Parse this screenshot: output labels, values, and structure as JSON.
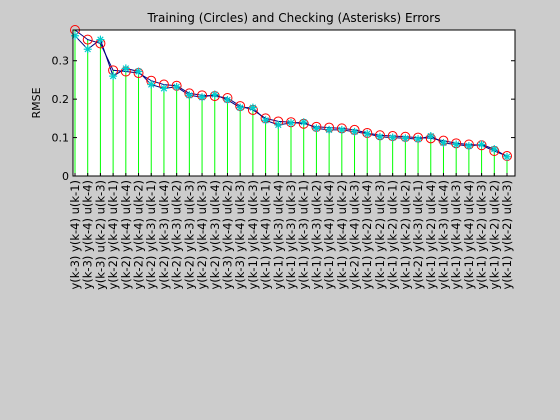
{
  "figure": {
    "background": "#cccccc"
  },
  "chart_data": {
    "type": "line",
    "title": "Training (Circles) and Checking (Asterisks) Errors",
    "xlabel": "",
    "ylabel": "RMSE",
    "ylim": [
      0,
      0.38
    ],
    "yticks": [
      0,
      0.1,
      0.2,
      0.3
    ],
    "grid": false,
    "categories": [
      "y(k-3) y(k-4) u(k-1)",
      "y(k-3) y(k-4) u(k-4)",
      "y(k-3) u(k-2) u(k-3)",
      "y(k-2) y(k-4) u(k-1)",
      "y(k-2) y(k-4) u(k-4)",
      "y(k-2) y(k-4) u(k-2)",
      "y(k-2) y(k-3) u(k-1)",
      "y(k-2) y(k-3) u(k-4)",
      "y(k-2) y(k-3) u(k-2)",
      "y(k-2) y(k-3) u(k-3)",
      "y(k-2) y(k-4) u(k-3)",
      "y(k-2) y(k-3) u(k-4)",
      "y(k-3) y(k-4) u(k-2)",
      "y(k-3) y(k-4) u(k-3)",
      "y(k-1) y(k-4) u(k-3)",
      "y(k-1) y(k-4) u(k-1)",
      "y(k-1) y(k-3) u(k-4)",
      "y(k-1) y(k-3) u(k-3)",
      "y(k-1) y(k-3) u(k-1)",
      "y(k-1) y(k-3) u(k-2)",
      "y(k-1) y(k-4) u(k-4)",
      "y(k-1) y(k-4) u(k-2)",
      "y(k-2) y(k-4) u(k-3)",
      "y(k-1) y(k-2) u(k-4)",
      "y(k-1) y(k-2) u(k-3)",
      "y(k-1) y(k-2) u(k-1)",
      "y(k-1) y(k-2) u(k-2)",
      "y(k-2) y(k-3) u(k-1)",
      "y(k-1) y(k-2) u(k-4)",
      "y(k-1) y(k-3) u(k-4)",
      "y(k-1) y(k-4) u(k-3)",
      "y(k-1) y(k-4) u(k-4)",
      "y(k-1) y(k-2) u(k-3)",
      "y(k-1) y(k-2) u(k-2)",
      "y(k-1) y(k-2) u(k-3)"
    ],
    "series": [
      {
        "name": "Training",
        "marker": "circle",
        "color": "#ff0000",
        "values": [
          0.38,
          0.355,
          0.345,
          0.275,
          0.272,
          0.268,
          0.248,
          0.238,
          0.235,
          0.215,
          0.21,
          0.208,
          0.203,
          0.182,
          0.172,
          0.15,
          0.142,
          0.14,
          0.136,
          0.128,
          0.126,
          0.124,
          0.12,
          0.112,
          0.106,
          0.104,
          0.102,
          0.1,
          0.098,
          0.092,
          0.085,
          0.082,
          0.08,
          0.065,
          0.052
        ]
      },
      {
        "name": "Checking",
        "marker": "asterisk",
        "color": "#00cccc",
        "values": [
          0.365,
          0.33,
          0.355,
          0.26,
          0.28,
          0.272,
          0.238,
          0.228,
          0.232,
          0.21,
          0.205,
          0.212,
          0.198,
          0.178,
          0.178,
          0.145,
          0.133,
          0.138,
          0.14,
          0.124,
          0.12,
          0.12,
          0.115,
          0.11,
          0.102,
          0.1,
          0.098,
          0.096,
          0.104,
          0.086,
          0.082,
          0.078,
          0.082,
          0.07,
          0.05
        ]
      }
    ],
    "colors": {
      "stem": "#00ff00",
      "line": "#000080"
    }
  }
}
